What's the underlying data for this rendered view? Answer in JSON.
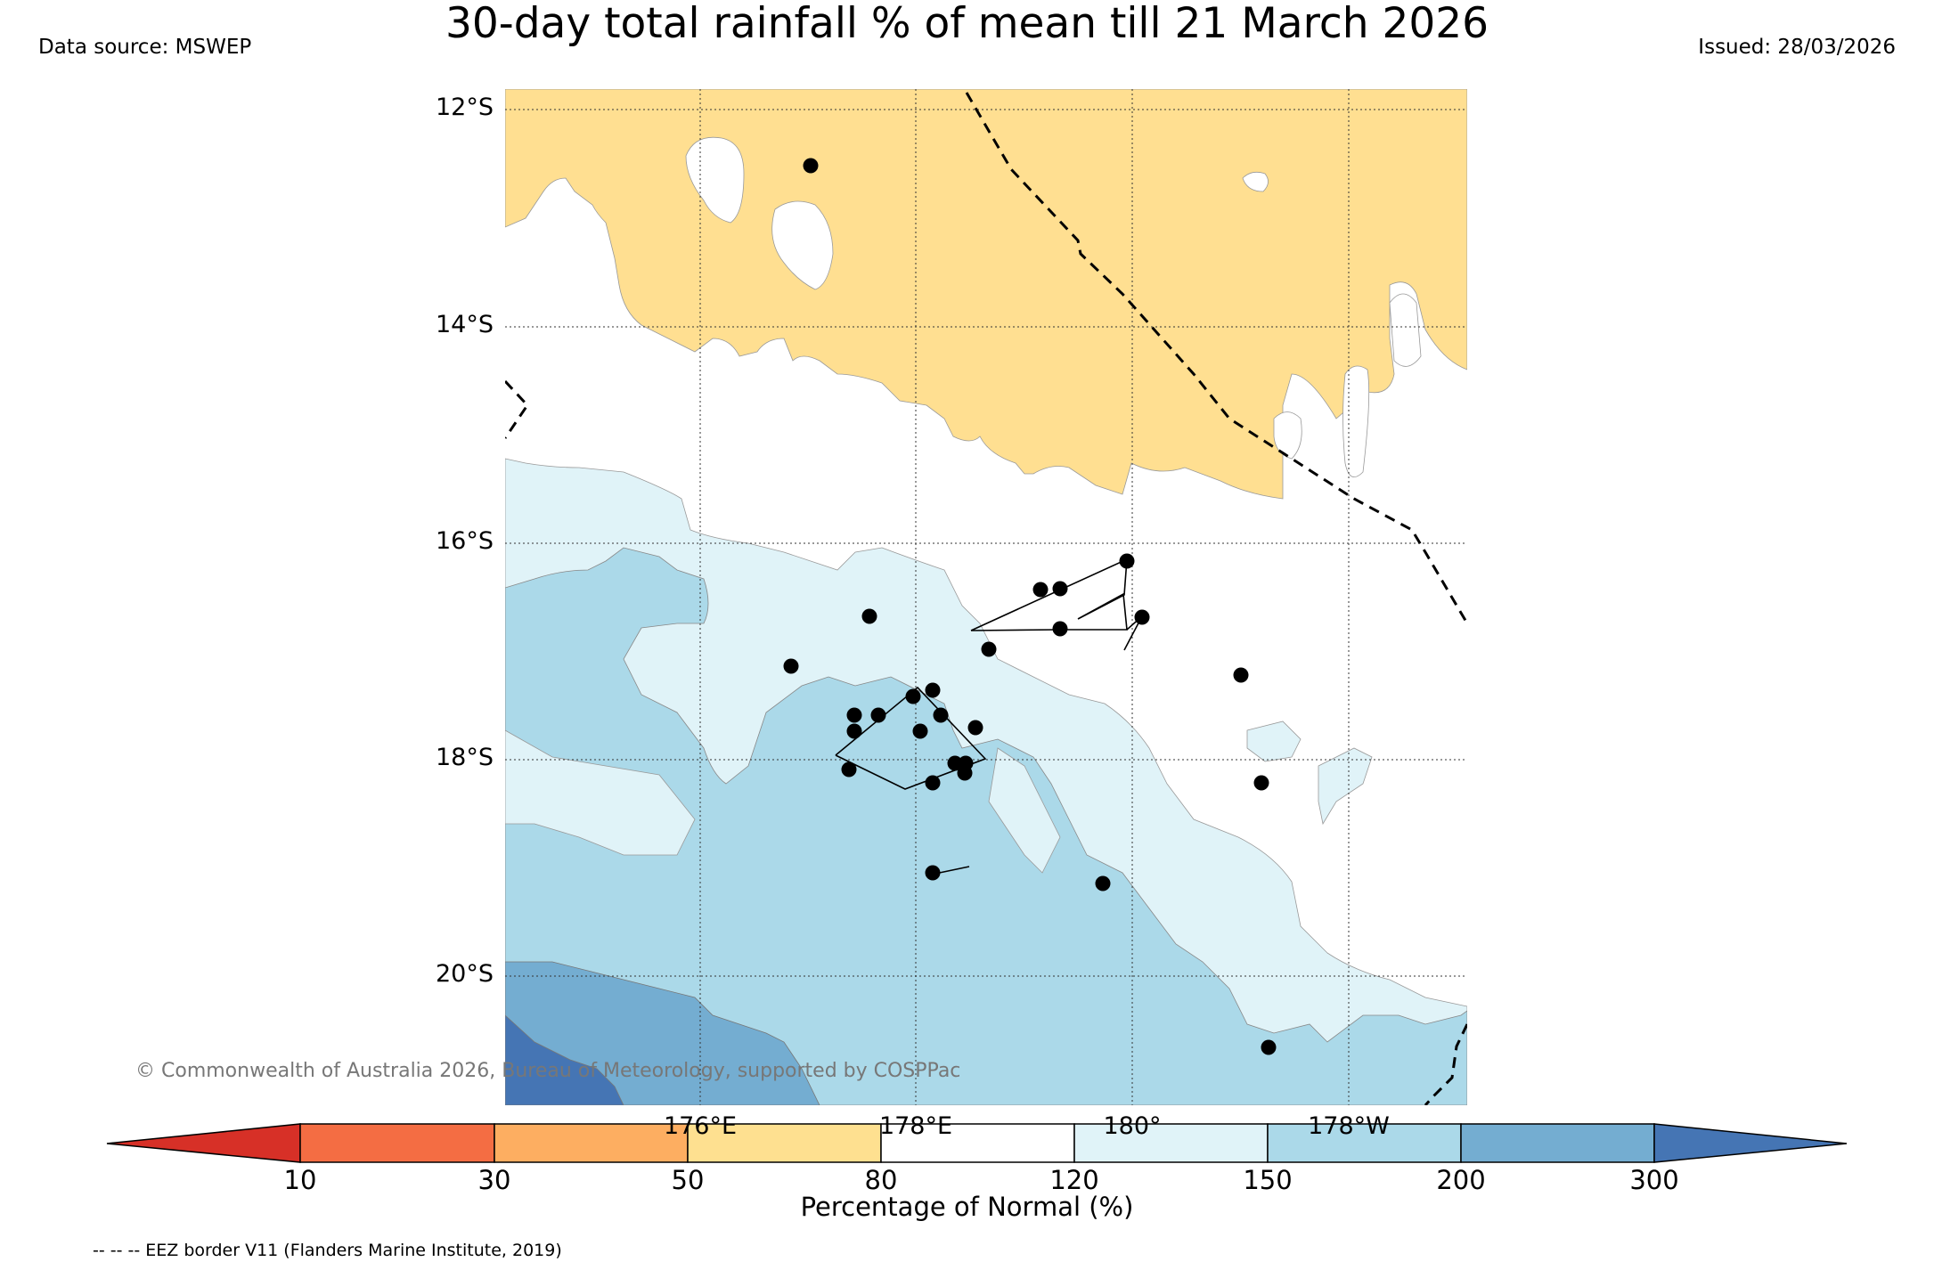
{
  "header": {
    "title": "30-day total rainfall % of mean till 21 March 2026",
    "data_source": "Data source: MSWEP",
    "issued": "Issued: 28/03/2026"
  },
  "map": {
    "lat_labels": [
      "12°S",
      "14°S",
      "16°S",
      "18°S",
      "20°S"
    ],
    "lon_labels": [
      "176°E",
      "178°E",
      "180°",
      "178°W"
    ],
    "copyright": "© Commonwealth of Australia 2026, Bureau of Meteorology, supported by COSPPac",
    "colors": {
      "below_50_80": "#ffdf91",
      "normal_80_120": "#ffffff",
      "above_120_150": "#e0f3f8",
      "above_150_200": "#abd9e9",
      "above_200_300": "#74add1",
      "above_300": "#4575b4"
    }
  },
  "colorbar": {
    "title": "Percentage of Normal (%)",
    "ticks": [
      "10",
      "30",
      "50",
      "80",
      "120",
      "150",
      "200",
      "300"
    ],
    "colors": [
      "#d73027",
      "#f46d43",
      "#fdae61",
      "#fee090",
      "#ffffff",
      "#e0f3f8",
      "#abd9e9",
      "#74add1",
      "#4575b4"
    ]
  },
  "footer": {
    "eez_note": "-- -- -- EEZ border V11 (Flanders Marine Institute, 2019)"
  }
}
